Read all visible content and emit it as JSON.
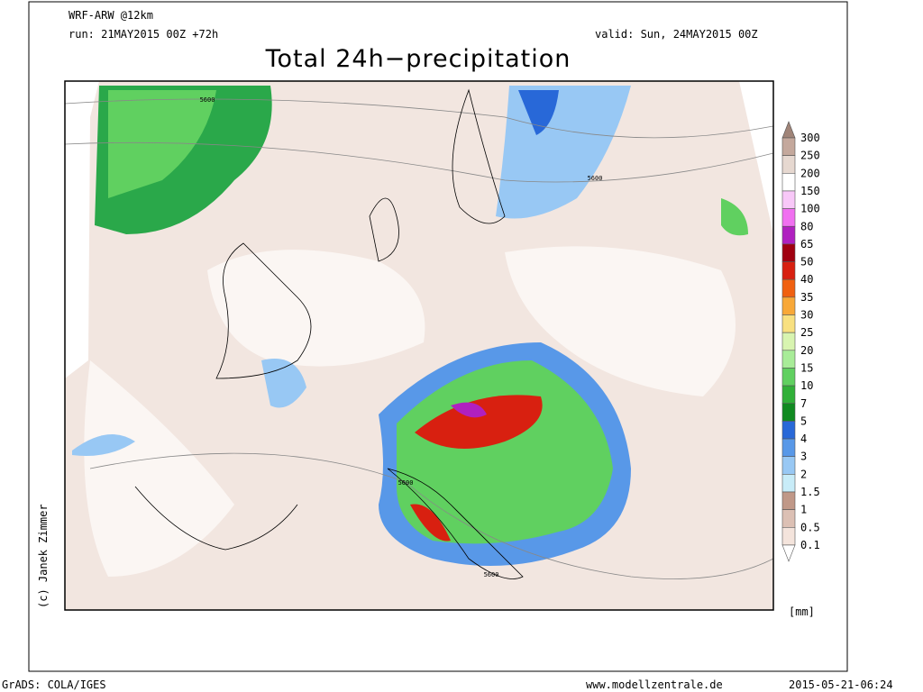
{
  "header": {
    "model": "WRF-ARW @12km",
    "run": "run: 21MAY2015 00Z +72h",
    "valid": "valid: Sun, 24MAY2015 00Z",
    "title": "Total 24h−precipitation"
  },
  "map": {
    "contour_labels": [
      "5600",
      "5600",
      "5600",
      "5600"
    ]
  },
  "colorbar": {
    "labels": [
      "300",
      "250",
      "200",
      "150",
      "100",
      "80",
      "65",
      "50",
      "40",
      "35",
      "30",
      "25",
      "20",
      "15",
      "10",
      "7",
      "5",
      "4",
      "3",
      "2",
      "1.5",
      "1",
      "0.5",
      "0.1"
    ],
    "colors": [
      "#a08478",
      "#c4a89c",
      "#e6d8d0",
      "#ffffff",
      "#f8c8f8",
      "#f070f0",
      "#b020c0",
      "#a00010",
      "#d82010",
      "#f06010",
      "#f8a838",
      "#f8e080",
      "#d8f4b0",
      "#a8ec98",
      "#60d060",
      "#30b038",
      "#108a20",
      "#2868d8",
      "#5898e8",
      "#98c8f4",
      "#c8ecf8",
      "#c09888",
      "#dcc0b4",
      "#f4e4dc",
      "#ffffff"
    ],
    "unit": "[mm]"
  },
  "footer": {
    "credit": "(c) Janek Zimmer",
    "software": "GrADS: COLA/IGES",
    "website": "www.modellzentrale.de",
    "timestamp": "2015-05-21-06:24"
  }
}
